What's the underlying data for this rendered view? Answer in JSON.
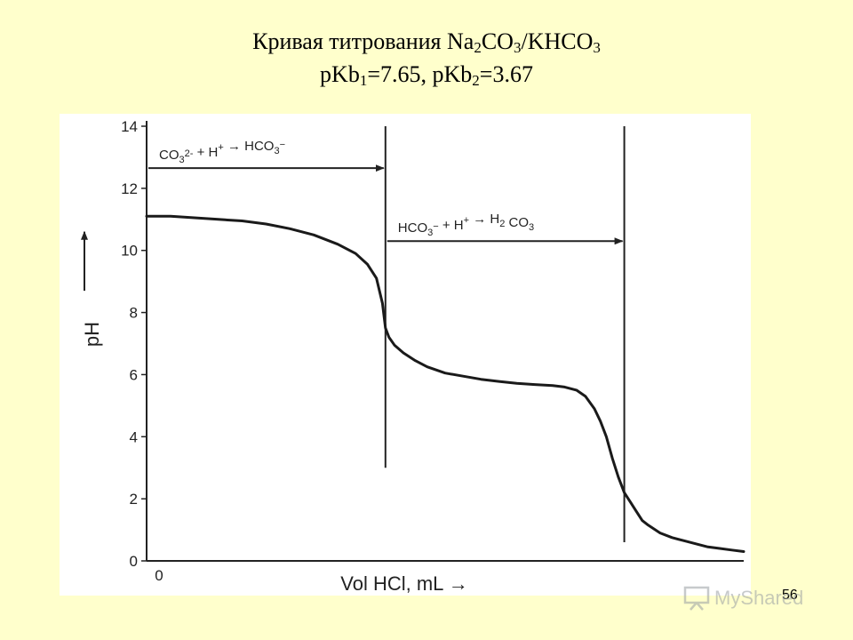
{
  "title": {
    "line1_prefix": "Кривая титрования Na",
    "line1_sub1": "2",
    "line1_mid": "CO",
    "line1_sub2": "3",
    "line1_suffix": "/KHCO",
    "line1_sub3": "3",
    "line2_a": "pKb",
    "line2_sub1": "1",
    "line2_b": "=7.65, pKb",
    "line2_sub2": "2",
    "line2_c": "=3.67"
  },
  "slide_number": "56",
  "watermark": {
    "text": "MyShared",
    "icon": "presentation-board-icon"
  },
  "chart_data": {
    "type": "line",
    "title": "",
    "xlabel": "Vol HCl, mL →",
    "ylabel": "pH",
    "ylim": [
      0,
      14
    ],
    "yticks": [
      "0",
      "2",
      "4",
      "6",
      "8",
      "10",
      "12",
      "14"
    ],
    "x_tick_label": "0",
    "xlim": [
      0,
      100
    ],
    "grid": false,
    "series": [
      {
        "x": [
          0,
          4,
          8,
          12,
          16,
          20,
          24,
          28,
          32,
          35,
          37,
          38.5,
          39.5,
          40,
          40.6,
          41.5,
          43,
          45,
          47,
          50,
          53,
          56,
          59,
          62,
          65,
          68,
          70,
          72,
          73.5,
          75,
          76,
          77,
          78,
          79,
          80,
          81,
          82,
          83,
          84,
          86,
          88,
          90,
          92,
          94,
          96,
          98,
          100
        ],
        "y": [
          11.1,
          11.1,
          11.05,
          11.0,
          10.95,
          10.85,
          10.7,
          10.5,
          10.2,
          9.9,
          9.55,
          9.1,
          8.3,
          7.5,
          7.2,
          6.95,
          6.7,
          6.45,
          6.25,
          6.05,
          5.95,
          5.85,
          5.78,
          5.72,
          5.68,
          5.65,
          5.6,
          5.5,
          5.3,
          4.9,
          4.5,
          4.0,
          3.3,
          2.7,
          2.2,
          1.9,
          1.6,
          1.3,
          1.15,
          0.9,
          0.75,
          0.65,
          0.55,
          0.45,
          0.4,
          0.35,
          0.3
        ]
      }
    ],
    "equivalence_points": [
      40,
      80
    ],
    "annotations": [
      {
        "parts": [
          {
            "t": "CO"
          },
          {
            "t": "3",
            "sub": true
          },
          {
            "t": "2-",
            "sup": true
          },
          {
            "t": " + H"
          },
          {
            "t": "+",
            "sup": true
          },
          {
            "t": " → HCO"
          },
          {
            "t": "3",
            "sub": true
          },
          {
            "t": "−",
            "sup": true
          }
        ],
        "x_from": 0,
        "x_to": 40,
        "y": 12.65
      },
      {
        "parts": [
          {
            "t": "HCO"
          },
          {
            "t": "3",
            "sub": true
          },
          {
            "t": "−",
            "sup": true
          },
          {
            "t": " + H"
          },
          {
            "t": "+",
            "sup": true
          },
          {
            "t": " → H"
          },
          {
            "t": "2",
            "sub": true
          },
          {
            "t": " CO"
          },
          {
            "t": "3",
            "sub": true
          }
        ],
        "x_from": 40,
        "x_to": 80,
        "y": 10.3
      }
    ],
    "colors": {
      "curve": "#1a1a1a",
      "axes": "#222222"
    }
  }
}
